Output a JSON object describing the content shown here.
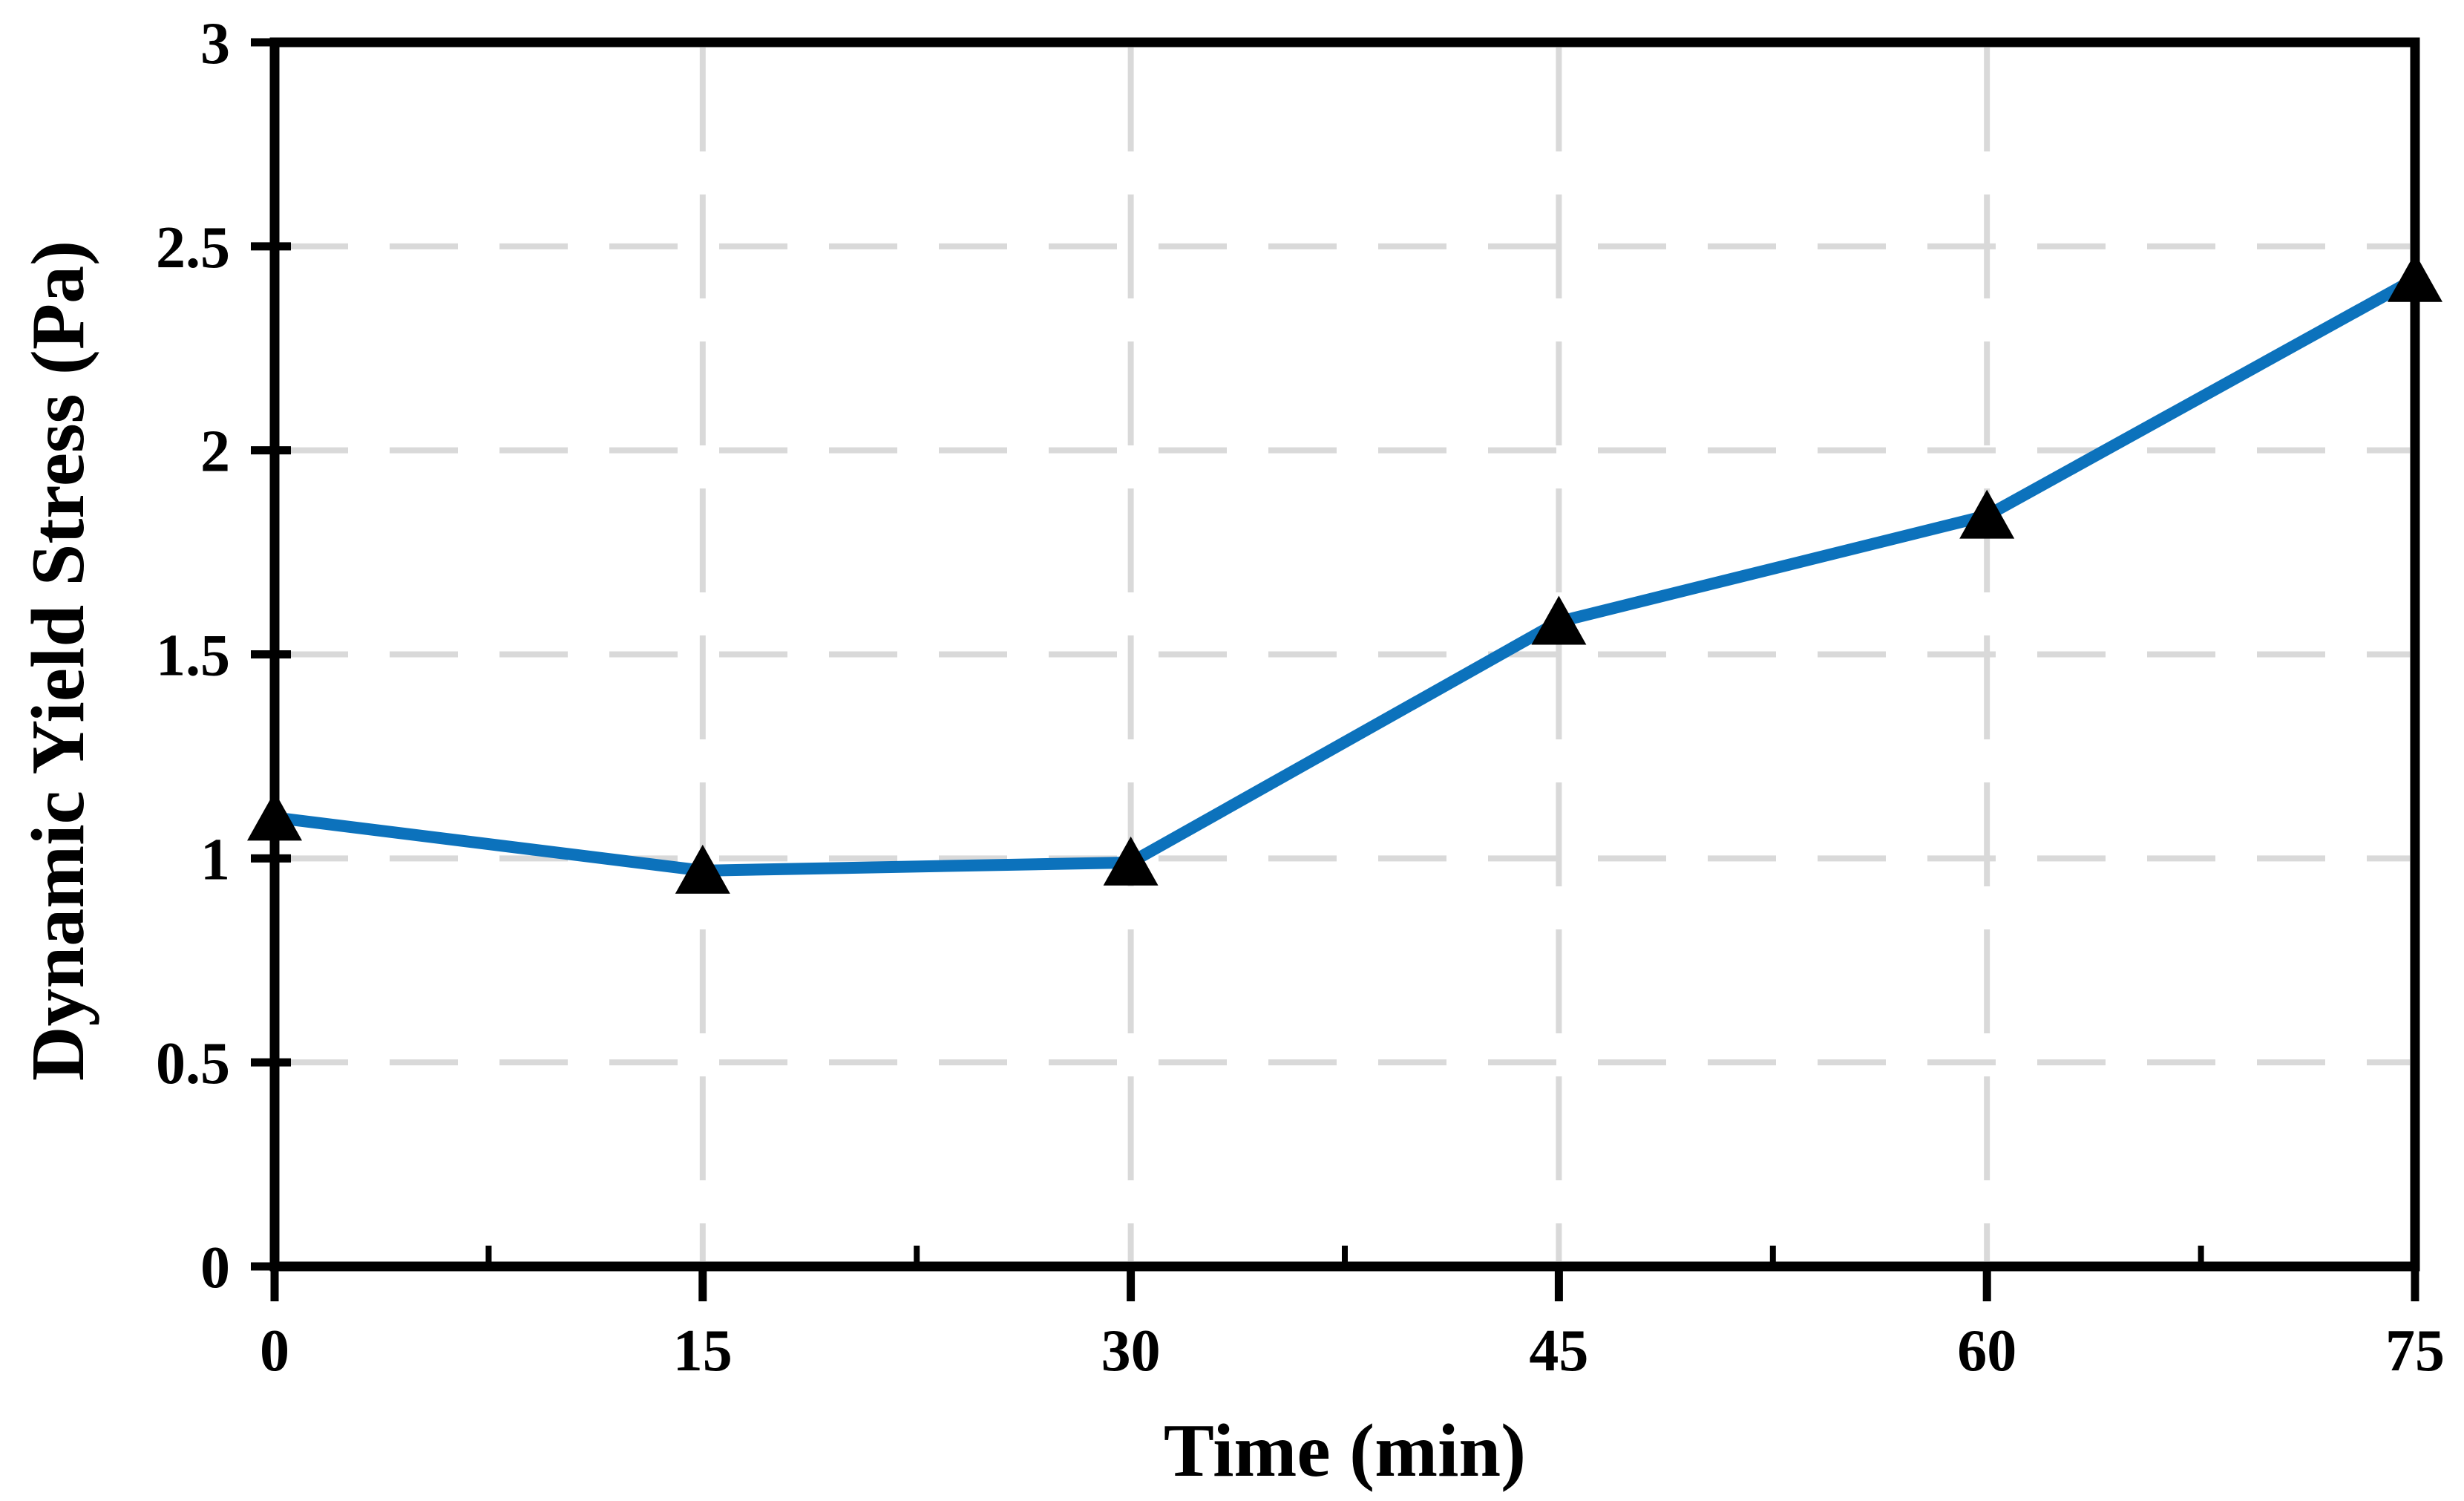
{
  "figure": {
    "background": "#FFFFFF"
  },
  "chart_data": {
    "type": "line",
    "title": "",
    "xlabel": "Time (min)",
    "ylabel": "Dynamic Yield Stress (Pa)",
    "x": [
      0,
      15,
      30,
      45,
      60,
      75
    ],
    "series": [
      {
        "name": "Dynamic yield stress",
        "values": [
          1.1,
          0.97,
          0.99,
          1.58,
          1.84,
          2.42
        ],
        "line_color": "#0C72BC",
        "marker": "triangle-up",
        "marker_color": "#000000"
      }
    ],
    "xlim": [
      0,
      75
    ],
    "ylim": [
      0,
      3
    ],
    "x_ticks": [
      0,
      15,
      30,
      45,
      60,
      75
    ],
    "x_tick_labels": [
      "0",
      "15",
      "30",
      "45",
      "60",
      "75"
    ],
    "x_minor_ticks": [
      7.5,
      22.5,
      37.5,
      52.5,
      67.5
    ],
    "y_ticks": [
      0,
      0.5,
      1,
      1.5,
      2,
      2.5,
      3
    ],
    "y_tick_labels": [
      "0",
      "0.5",
      "1",
      "1.5",
      "2",
      "2.5",
      "3"
    ],
    "grid": {
      "horizontal": true,
      "vertical": true,
      "style": "dashed",
      "color": "#D9D9D9"
    },
    "axis_color": "#000000",
    "legend": "none"
  }
}
